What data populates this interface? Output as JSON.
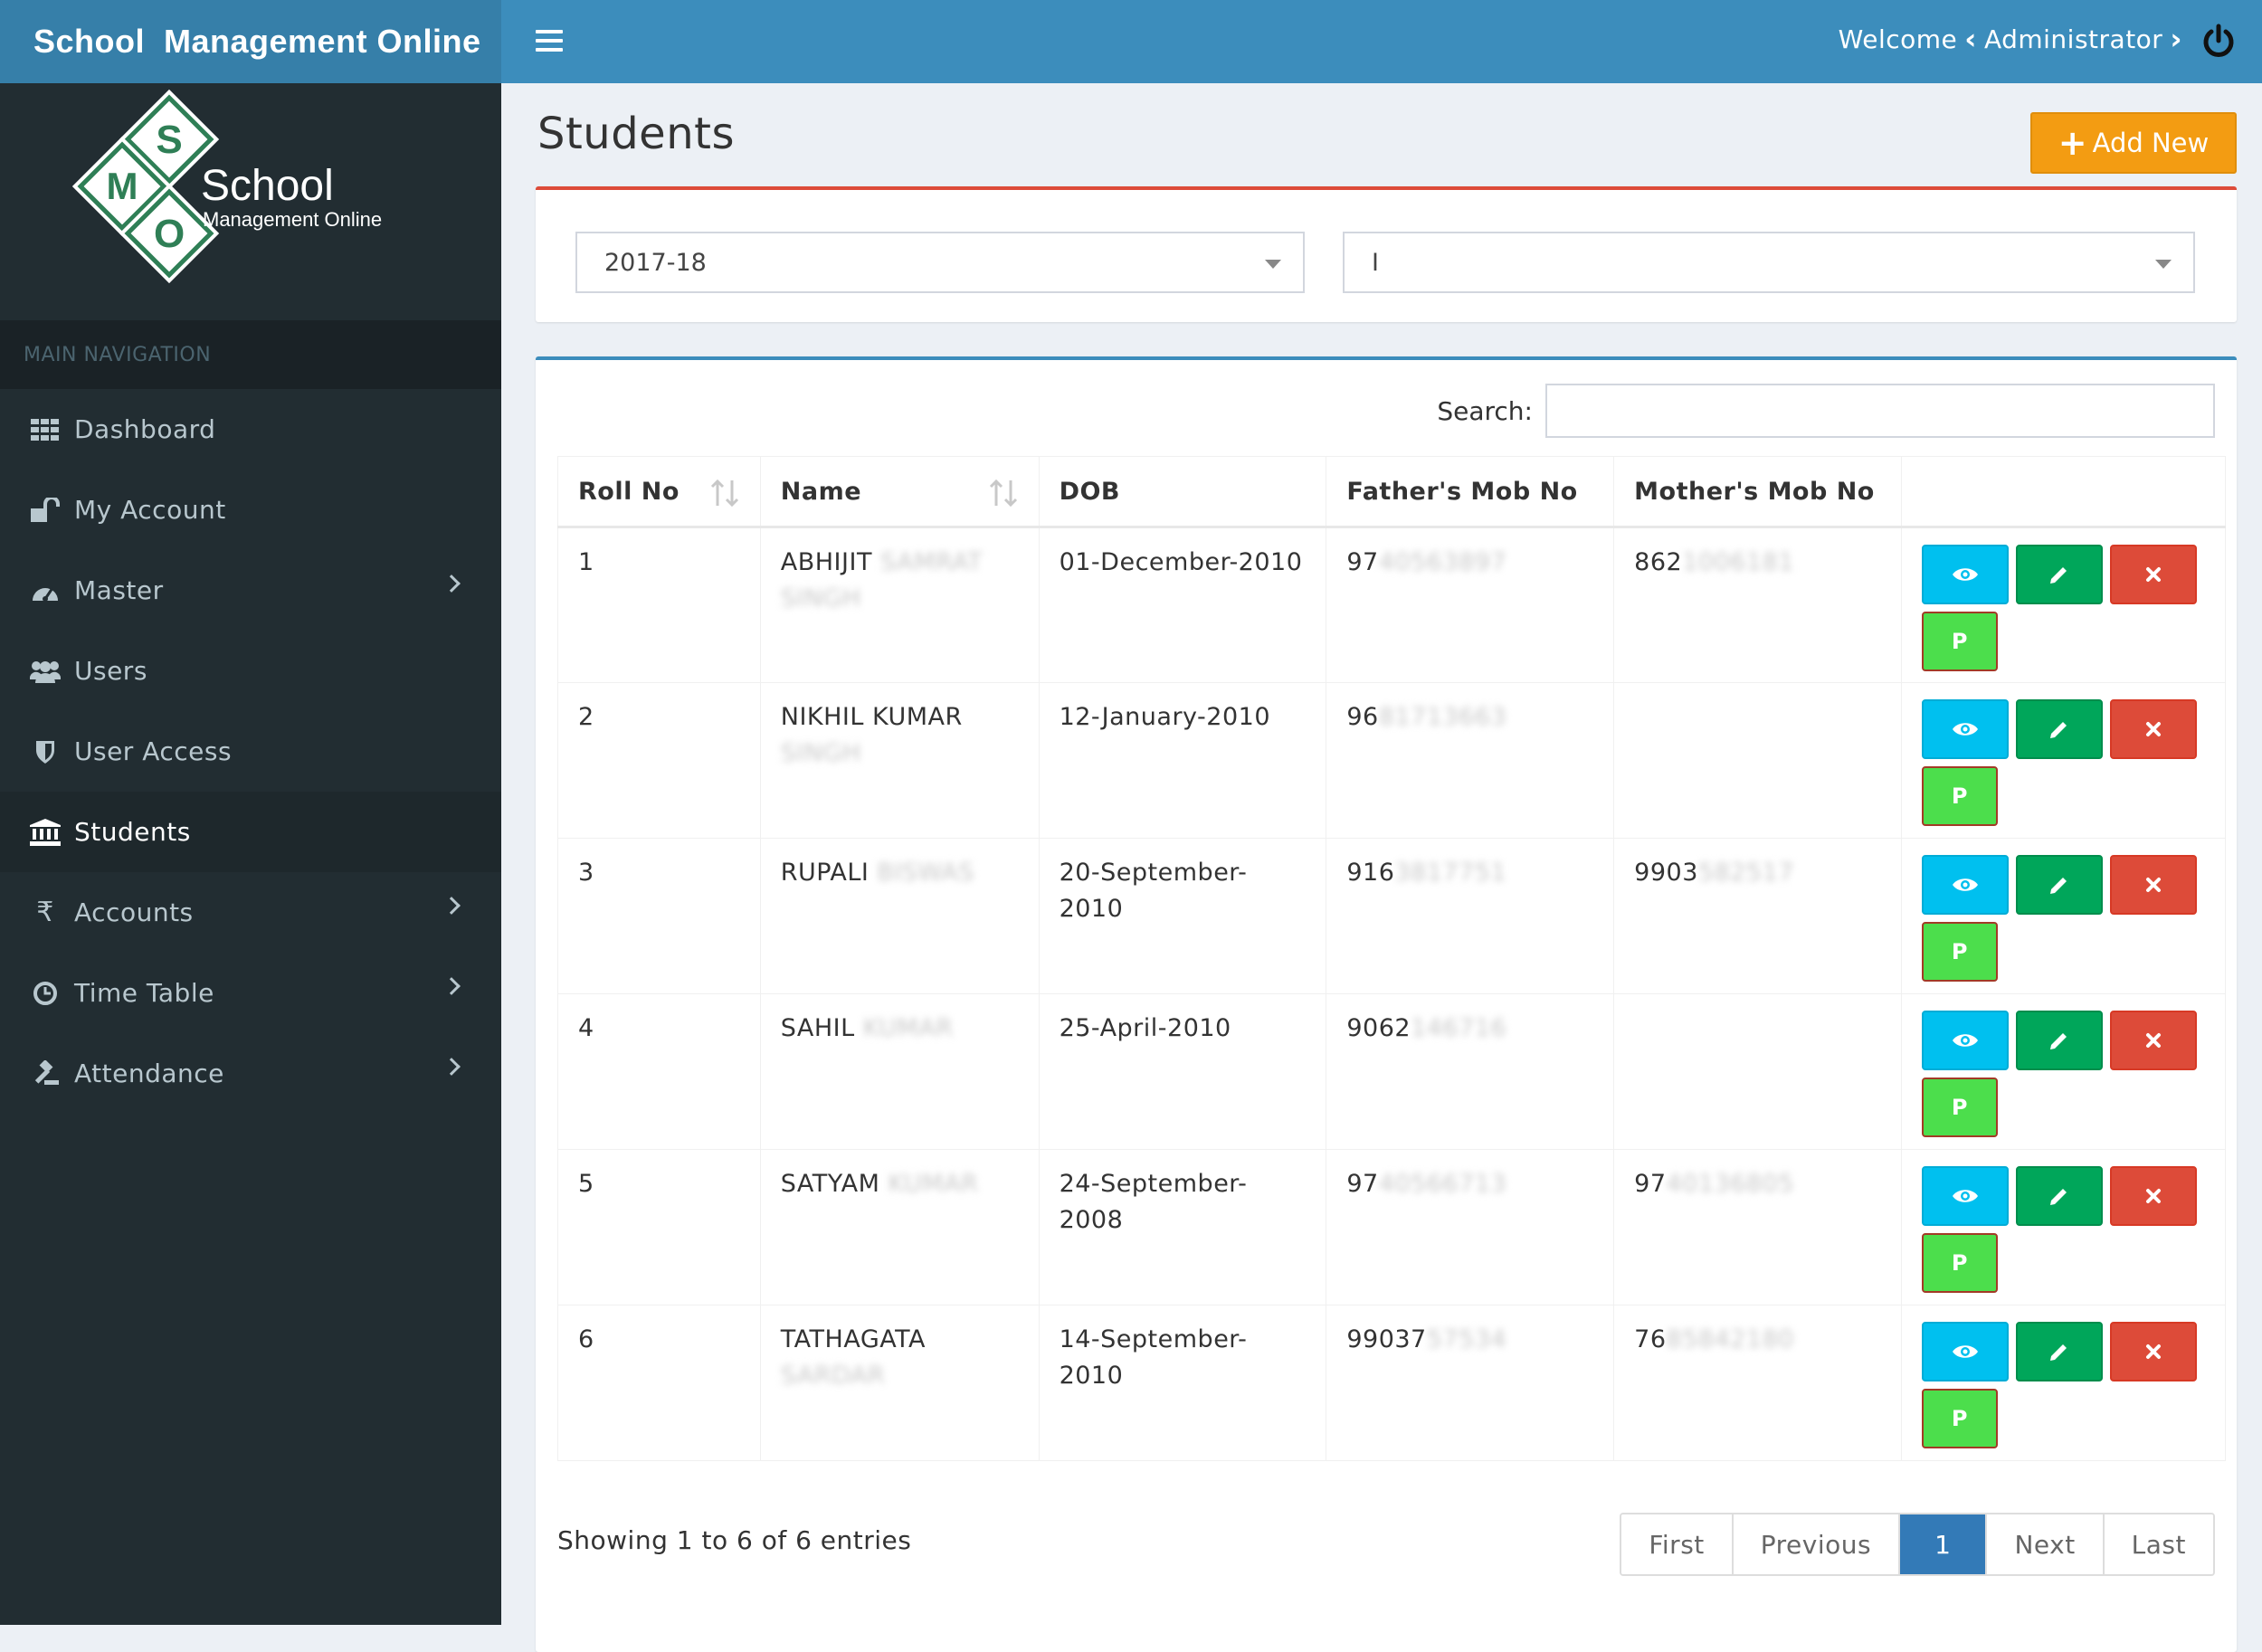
{
  "app": {
    "logo_text": "School  Management Online",
    "brand_word": "School",
    "brand_sub": "Management Online",
    "brand_letters": [
      "S",
      "M",
      "O"
    ]
  },
  "header": {
    "welcome_label": "Welcome",
    "user": "Administrator"
  },
  "sidebar": {
    "section": "MAIN NAVIGATION",
    "items": [
      {
        "label": "Dashboard",
        "icon": "grid-icon"
      },
      {
        "label": "My Account",
        "icon": "unlock-icon"
      },
      {
        "label": "Master",
        "icon": "dashboard-icon"
      },
      {
        "label": "Users",
        "icon": "users-icon"
      },
      {
        "label": "User Access",
        "icon": "shield-icon"
      },
      {
        "label": "Students",
        "icon": "bank-icon"
      },
      {
        "label": "Accounts",
        "icon": "rupee-icon"
      },
      {
        "label": "Time Table",
        "icon": "clock-icon"
      },
      {
        "label": "Attendance",
        "icon": "gavel-icon"
      }
    ]
  },
  "page": {
    "title": "Students",
    "add_button": "Add New"
  },
  "filters": {
    "session": "2017-18",
    "class": "I"
  },
  "table": {
    "search_label": "Search:",
    "columns": [
      "Roll No",
      "Name",
      "DOB",
      "Father's Mob No",
      "Mother's Mob No"
    ],
    "rows": [
      {
        "roll": "1",
        "name": "ABHIJIT",
        "name_hidden": "SAMRAT SINGH",
        "dob": "01-December-2010",
        "father": "97",
        "father_hidden": "40563897",
        "mother": "862",
        "mother_hidden": "1006181"
      },
      {
        "roll": "2",
        "name": "NIKHIL KUMAR",
        "name_hidden": "SINGH",
        "dob": "12-January-2010",
        "father": "96",
        "father_hidden": "81713663",
        "mother": "",
        "mother_hidden": ""
      },
      {
        "roll": "3",
        "name": "RUPALI",
        "name_hidden": "BISWAS",
        "dob": "20-September-2010",
        "father": "916",
        "father_hidden": "3817751",
        "mother": "9903",
        "mother_hidden": "582517"
      },
      {
        "roll": "4",
        "name": "SAHIL",
        "name_hidden": "KUMAR",
        "dob": "25-April-2010",
        "father": "9062",
        "father_hidden": "146716",
        "mother": "",
        "mother_hidden": ""
      },
      {
        "roll": "5",
        "name": "SATYAM",
        "name_hidden": "KUMAR",
        "dob": "24-September-2008",
        "father": "97",
        "father_hidden": "40566713",
        "mother": "97",
        "mother_hidden": "40136805"
      },
      {
        "roll": "6",
        "name": "TATHAGATA",
        "name_hidden": "SARDAR",
        "dob": "14-September-2010",
        "father": "99037",
        "father_hidden": "57534",
        "mother": "76",
        "mother_hidden": "85842180"
      }
    ],
    "p_label": "P",
    "showing": "Showing 1 to 6 of 6 entries"
  },
  "pagination": {
    "first": "First",
    "previous": "Previous",
    "current": "1",
    "next": "Next",
    "last": "Last"
  },
  "colors": {
    "header": "#3c8dbc",
    "logo_bar": "#367fa9",
    "sidebar": "#222d32",
    "add": "#f39c12",
    "view": "#00c0ef",
    "edit": "#00a65a",
    "delete": "#dd4b39",
    "p": "#4cde4c"
  }
}
